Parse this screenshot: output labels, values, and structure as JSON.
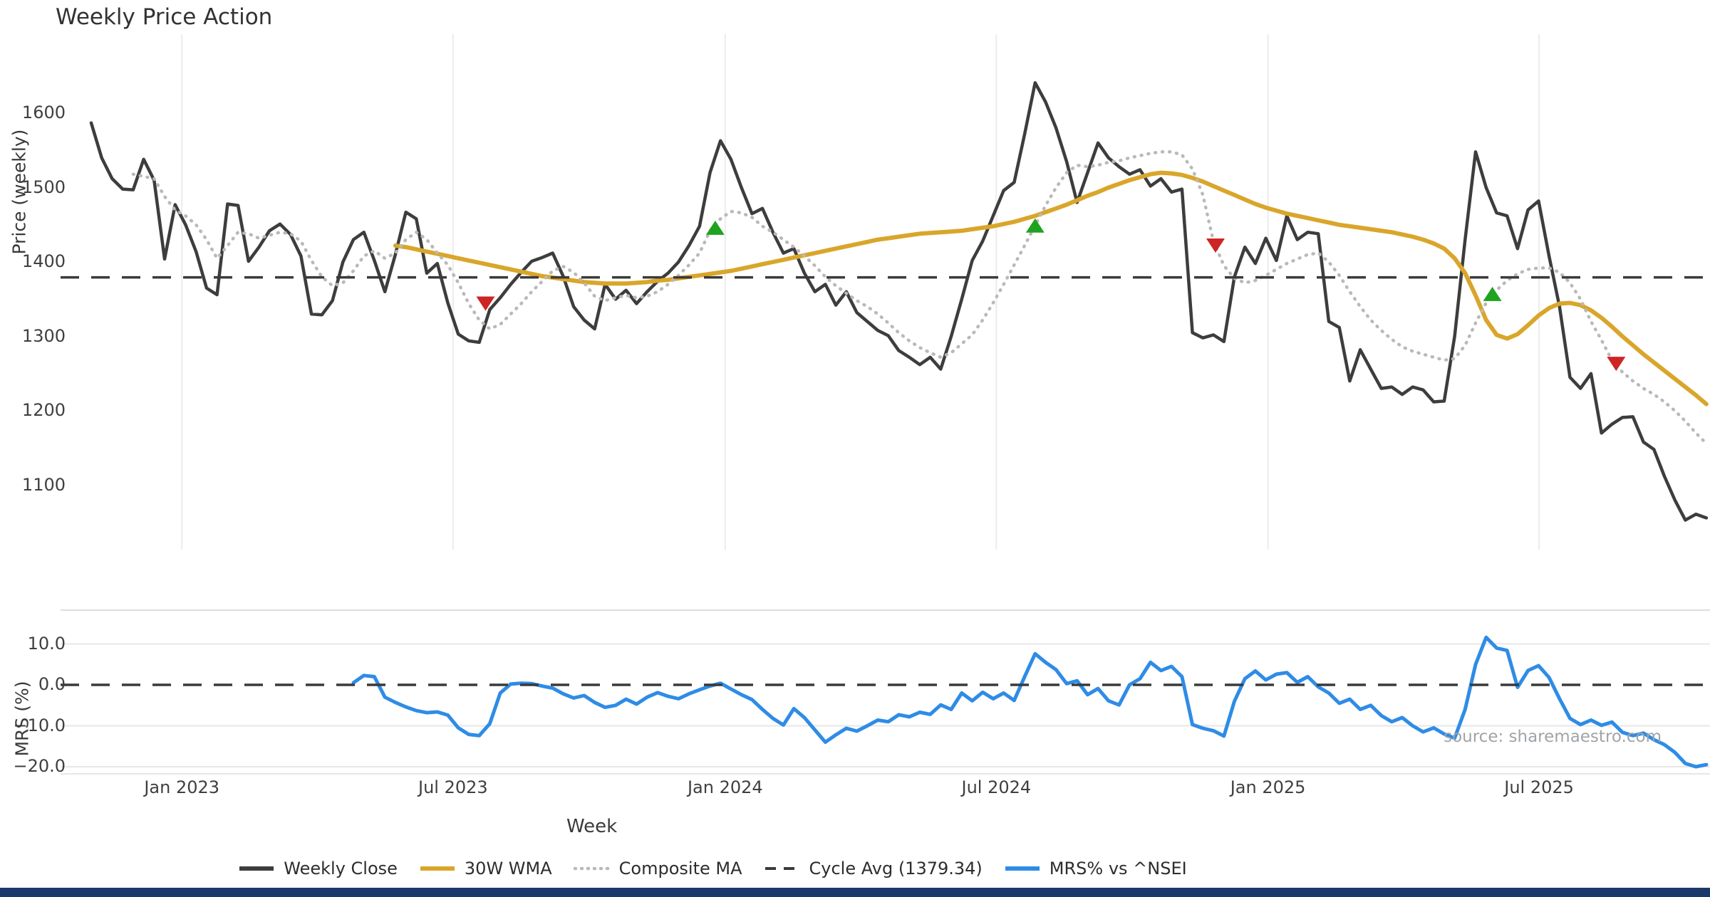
{
  "title": "Weekly Price Action",
  "source_note": "source: sharemaestro.com",
  "colors": {
    "close": "#3d3d3d",
    "wma": "#d9a62b",
    "composite": "#b9b9b9",
    "cycle_avg": "#3a3a3a",
    "mrs": "#2e8ce6",
    "buy": "#1fa31f",
    "sell": "#ce2424",
    "grid": "#ececec",
    "grid_light": "#e7e7e7",
    "panel_border": "#dedede",
    "bottom_bar": "#1b3a6b"
  },
  "chart_data": {
    "type": "line",
    "title": "Weekly Price Action",
    "xlabel": "Week",
    "ylabel_top": "Price (weekly)",
    "ylabel_bottom": "MRS (%)",
    "grid": "vertical-top-panel, horizontal-bottom-panel",
    "legend_position": "bottom-center",
    "price_ticks": [
      1600,
      1500,
      1400,
      1300,
      1200,
      1100
    ],
    "mrs_ticks": [
      {
        "label": "10.0",
        "v": 10
      },
      {
        "label": "0.0",
        "v": 0
      },
      {
        "label": "−10.0",
        "v": -10
      },
      {
        "label": "−20.0",
        "v": -20
      }
    ],
    "x_ticks": [
      {
        "label": "Jan 2023",
        "week": 8.64
      },
      {
        "label": "Jul 2023",
        "week": 34.5
      },
      {
        "label": "Jan 2024",
        "week": 60.45
      },
      {
        "label": "Jul 2024",
        "week": 86.3
      },
      {
        "label": "Jan 2025",
        "week": 112.2
      },
      {
        "label": "Jul 2025",
        "week": 138.05
      }
    ],
    "cycle_avg": 1379.34,
    "series": [
      {
        "name": "Weekly Close",
        "axis": "price",
        "start_week": 0,
        "values": [
          1587,
          1540,
          1512,
          1498,
          1497,
          1538,
          1510,
          1404,
          1477,
          1450,
          1414,
          1365,
          1356,
          1478,
          1476,
          1401,
          1420,
          1442,
          1451,
          1437,
          1408,
          1330,
          1329,
          1348,
          1400,
          1430,
          1440,
          1402,
          1360,
          1410,
          1467,
          1458,
          1385,
          1398,
          1345,
          1303,
          1294,
          1292,
          1336,
          1352,
          1370,
          1386,
          1401,
          1406,
          1412,
          1381,
          1340,
          1322,
          1310,
          1370,
          1350,
          1362,
          1344,
          1360,
          1374,
          1385,
          1400,
          1422,
          1448,
          1520,
          1563,
          1538,
          1500,
          1465,
          1472,
          1440,
          1412,
          1418,
          1385,
          1360,
          1370,
          1342,
          1360,
          1332,
          1320,
          1308,
          1301,
          1281,
          1272,
          1262,
          1272,
          1256,
          1300,
          1350,
          1402,
          1428,
          1462,
          1496,
          1507,
          1572,
          1641,
          1615,
          1580,
          1535,
          1480,
          1520,
          1560,
          1540,
          1528,
          1518,
          1524,
          1502,
          1512,
          1494,
          1498,
          1305,
          1298,
          1302,
          1293,
          1380,
          1420,
          1398,
          1432,
          1402,
          1462,
          1430,
          1440,
          1438,
          1320,
          1312,
          1240,
          1282,
          1256,
          1230,
          1232,
          1222,
          1232,
          1228,
          1212,
          1213,
          1300,
          1430,
          1548,
          1500,
          1466,
          1462,
          1418,
          1470,
          1482,
          1408,
          1340,
          1245,
          1230,
          1250,
          1170,
          1182,
          1191,
          1192,
          1158,
          1148,
          1112,
          1080,
          1053,
          1061,
          1056
        ]
      },
      {
        "name": "30W WMA",
        "axis": "price",
        "start_week": 29,
        "values": [
          1422,
          1420,
          1417,
          1414,
          1411,
          1408,
          1405,
          1402,
          1399,
          1396,
          1393,
          1390,
          1387,
          1384,
          1381,
          1379,
          1377,
          1375,
          1373,
          1372,
          1371,
          1371,
          1371,
          1372,
          1373,
          1375,
          1376,
          1378,
          1380,
          1382,
          1384,
          1386,
          1388,
          1391,
          1394,
          1397,
          1400,
          1403,
          1406,
          1409,
          1412,
          1415,
          1418,
          1421,
          1424,
          1427,
          1430,
          1432,
          1434,
          1436,
          1438,
          1439,
          1440,
          1441,
          1442,
          1444,
          1446,
          1448,
          1451,
          1454,
          1458,
          1462,
          1467,
          1472,
          1477,
          1483,
          1489,
          1494,
          1500,
          1505,
          1510,
          1514,
          1518,
          1520,
          1519,
          1517,
          1513,
          1508,
          1502,
          1496,
          1490,
          1484,
          1478,
          1473,
          1469,
          1465,
          1462,
          1459,
          1456,
          1453,
          1450,
          1448,
          1446,
          1444,
          1442,
          1440,
          1437,
          1434,
          1430,
          1425,
          1418,
          1405,
          1385,
          1355,
          1322,
          1302,
          1297,
          1303,
          1315,
          1328,
          1338,
          1344,
          1345,
          1342,
          1335,
          1325,
          1313,
          1300,
          1288,
          1276,
          1265,
          1254,
          1243,
          1232,
          1221,
          1209
        ]
      },
      {
        "name": "Composite MA",
        "axis": "price",
        "start_week": 4,
        "values": [
          1518,
          1515,
          1512,
          1488,
          1470,
          1462,
          1450,
          1430,
          1405,
          1422,
          1440,
          1438,
          1432,
          1436,
          1440,
          1438,
          1428,
          1402,
          1380,
          1368,
          1372,
          1388,
          1408,
          1415,
          1405,
          1412,
          1430,
          1440,
          1430,
          1412,
          1396,
          1372,
          1344,
          1322,
          1310,
          1316,
          1330,
          1344,
          1360,
          1374,
          1388,
          1394,
          1386,
          1372,
          1354,
          1348,
          1352,
          1355,
          1352,
          1354,
          1360,
          1370,
          1382,
          1396,
          1412,
          1442,
          1458,
          1468,
          1466,
          1460,
          1448,
          1440,
          1430,
          1420,
          1408,
          1395,
          1380,
          1368,
          1358,
          1348,
          1340,
          1330,
          1318,
          1305,
          1294,
          1285,
          1278,
          1272,
          1278,
          1290,
          1302,
          1322,
          1345,
          1370,
          1396,
          1422,
          1449,
          1476,
          1500,
          1520,
          1530,
          1528,
          1530,
          1534,
          1536,
          1540,
          1543,
          1546,
          1548,
          1548,
          1544,
          1525,
          1490,
          1428,
          1395,
          1378,
          1372,
          1375,
          1382,
          1390,
          1398,
          1404,
          1410,
          1412,
          1400,
          1382,
          1360,
          1340,
          1322,
          1308,
          1296,
          1286,
          1280,
          1276,
          1272,
          1268,
          1270,
          1288,
          1318,
          1345,
          1362,
          1375,
          1384,
          1390,
          1392,
          1392,
          1386,
          1372,
          1350,
          1320,
          1295,
          1268,
          1252,
          1240,
          1230,
          1222,
          1212,
          1200,
          1186,
          1170,
          1156
        ]
      },
      {
        "name": "MRS% vs ^NSEI",
        "axis": "mrs",
        "start_week": 25,
        "values": [
          0.5,
          2.3,
          2.0,
          -3.0,
          -4.3,
          -5.4,
          -6.3,
          -6.8,
          -6.6,
          -7.4,
          -10.5,
          -12.1,
          -12.4,
          -9.5,
          -2.0,
          0.2,
          0.4,
          0.3,
          -0.3,
          -0.8,
          -2.2,
          -3.2,
          -2.6,
          -4.3,
          -5.5,
          -5.0,
          -3.5,
          -4.7,
          -3.0,
          -1.9,
          -2.8,
          -3.4,
          -2.2,
          -1.2,
          -0.3,
          0.4,
          -1.0,
          -2.4,
          -3.6,
          -6.0,
          -8.2,
          -9.8,
          -5.8,
          -8.0,
          -11.0,
          -14.0,
          -12.2,
          -10.6,
          -11.3,
          -10.0,
          -8.6,
          -9.0,
          -7.3,
          -7.8,
          -6.7,
          -7.2,
          -4.9,
          -6.0,
          -2.0,
          -3.9,
          -1.8,
          -3.4,
          -2.0,
          -3.8,
          2.0,
          7.6,
          5.5,
          3.7,
          0.3,
          1.0,
          -2.4,
          -0.9,
          -3.9,
          -4.9,
          0.0,
          1.5,
          5.5,
          3.5,
          4.5,
          2.0,
          -9.7,
          -10.6,
          -11.2,
          -12.5,
          -4.0,
          1.5,
          3.4,
          1.2,
          2.6,
          3.0,
          0.6,
          2.0,
          -0.5,
          -2.0,
          -4.5,
          -3.5,
          -6.0,
          -5.0,
          -7.5,
          -9.0,
          -8.0,
          -10.0,
          -11.5,
          -10.5,
          -12.0,
          -13.0,
          -6.0,
          5.0,
          11.6,
          9.0,
          8.4,
          -0.6,
          3.5,
          4.7,
          1.8,
          -3.4,
          -8.2,
          -9.7,
          -8.6,
          -9.9,
          -9.1,
          -11.6,
          -12.4,
          -11.8,
          -13.4,
          -14.6,
          -16.5,
          -19.2,
          -20.0,
          -19.5
        ]
      },
      {
        "name": "Cycle Avg (1379.34)",
        "axis": "price",
        "type": "hline",
        "value": 1379.34
      },
      {
        "name": "MRS zero line",
        "axis": "mrs",
        "type": "hline",
        "value": 0
      }
    ],
    "markers": {
      "buy": [
        {
          "week": 59.5,
          "price": 1446
        },
        {
          "week": 90.0,
          "price": 1449
        },
        {
          "week": 133.6,
          "price": 1357
        }
      ],
      "sell": [
        {
          "week": 37.6,
          "price": 1344
        },
        {
          "week": 107.2,
          "price": 1422
        },
        {
          "week": 145.4,
          "price": 1263
        }
      ]
    }
  },
  "legend": [
    {
      "label": "Weekly Close",
      "style": "solid",
      "color_key": "close"
    },
    {
      "label": "30W WMA",
      "style": "solid",
      "color_key": "wma"
    },
    {
      "label": "Composite MA",
      "style": "dotted",
      "color_key": "composite"
    },
    {
      "label": "Cycle Avg (1379.34)",
      "style": "dashed",
      "color_key": "cycle_avg"
    },
    {
      "label": "MRS% vs ^NSEI",
      "style": "solid",
      "color_key": "mrs"
    }
  ]
}
